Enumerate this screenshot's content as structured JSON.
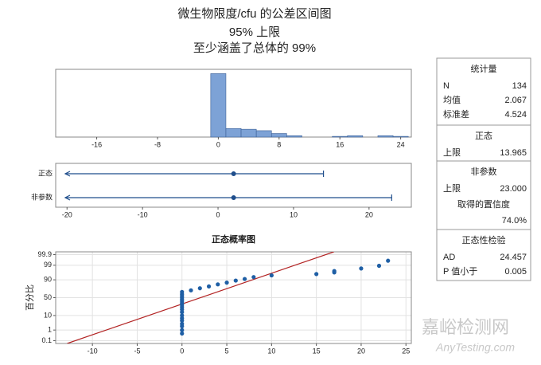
{
  "title": "微生物限度/cfu 的公差区间图",
  "subtitle": "95% 上限",
  "subtitle2": "至少涵盖了总体的 99%",
  "chart_data": [
    {
      "type": "histogram",
      "bins": [
        -1,
        1,
        3,
        5,
        7,
        9,
        11,
        13,
        15,
        17,
        19,
        21,
        23,
        25
      ],
      "values": [
        89,
        12,
        11,
        9,
        5,
        2,
        0,
        0,
        1,
        2,
        0,
        2,
        1
      ],
      "color": "#7da2d6",
      "xlim": [
        -21.4,
        25.4
      ],
      "xticks": [
        -16,
        -8,
        0,
        8,
        16,
        24
      ],
      "ylim": [
        0,
        95
      ]
    },
    {
      "type": "interval",
      "categories": [
        "正态",
        "非参数"
      ],
      "center": [
        2.067,
        2.067
      ],
      "upper": [
        13.965,
        23
      ],
      "color": "#1f4e8c",
      "xlim": [
        -21.5,
        25.6
      ],
      "xticks": [
        -20,
        -10,
        0,
        10,
        20
      ]
    },
    {
      "type": "probability",
      "title": "正态概率图",
      "ylabel": "百分比",
      "x": [
        0,
        0,
        0,
        0,
        0,
        0,
        0,
        0,
        0,
        0,
        0,
        0,
        0,
        0,
        0,
        0,
        0,
        0,
        1,
        2,
        3,
        4,
        5,
        6,
        7,
        8,
        10,
        15,
        17,
        17,
        20,
        22,
        23
      ],
      "values": [
        0.5,
        1,
        2,
        3,
        5,
        7,
        10,
        15,
        20,
        25,
        30,
        35,
        40,
        45,
        50,
        55,
        60,
        66,
        70,
        75,
        79,
        83,
        86,
        89,
        91,
        93,
        94.5,
        95.5,
        96.5,
        97.2,
        98.2,
        98.9,
        99.6
      ],
      "color": "#1f5fa5",
      "fit": {
        "mean": 2.067,
        "sd": 4.524,
        "color": "#b22222"
      },
      "xlim": [
        -14.1,
        25.6
      ],
      "xticks": [
        -10,
        -5,
        0,
        5,
        10,
        15,
        20,
        25
      ],
      "ylim": [
        0.05,
        99.95
      ],
      "yticks": [
        0.1,
        1,
        10,
        50,
        90,
        99,
        99.9
      ],
      "grid": true
    }
  ],
  "stats_panel": [
    {
      "header": "统计量",
      "rows": [
        [
          "N",
          "134"
        ],
        [
          "均值",
          "2.067"
        ],
        [
          "标准差",
          "4.524"
        ]
      ]
    },
    {
      "header": "正态",
      "rows": [
        [
          "上限",
          "13.965"
        ]
      ]
    },
    {
      "header": "非参数",
      "rows": [
        [
          "上限",
          "23.000"
        ]
      ],
      "note": "取得的置信度",
      "note_value": "74.0%"
    },
    {
      "header": "正态性检验",
      "rows": [
        [
          "AD",
          "24.457"
        ],
        [
          "P 值小于",
          "0.005"
        ]
      ]
    }
  ],
  "watermark": [
    "嘉峪检测网",
    "AnyTesting.com"
  ]
}
